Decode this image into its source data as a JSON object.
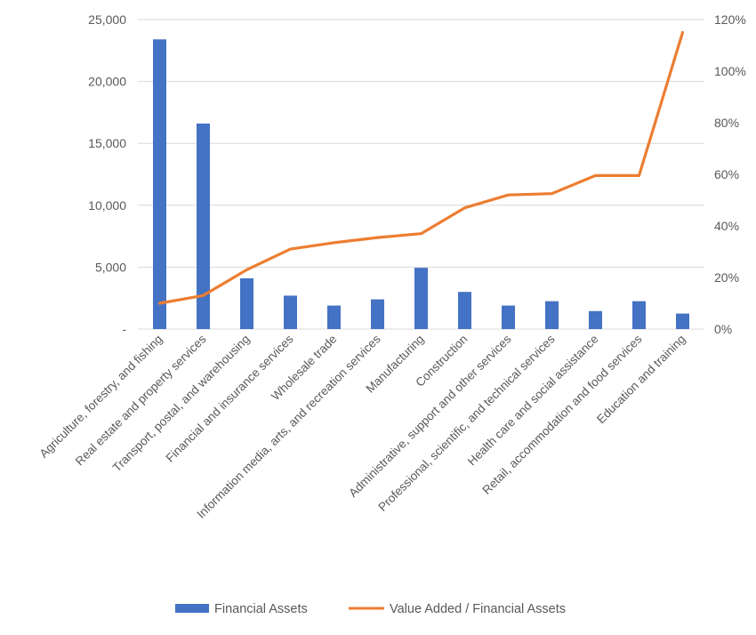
{
  "chart_data": {
    "type": "bar",
    "categories": [
      "Agriculture, forestry, and fishing",
      "Real estate and property services",
      "Transport, postal, and warehousing",
      "Financial and insurance services",
      "Wholesale trade",
      "Information media, arts, and recreation services",
      "Manufacturing",
      "Construction",
      "Administrative, support and other services",
      "Professional, scientific, and technical services",
      "Health care and social assistance",
      "Retail, accommodation and food services",
      "Education and training"
    ],
    "series": [
      {
        "name": "Financial Assets",
        "type": "bar",
        "axis": "left",
        "values": [
          23400,
          16600,
          4100,
          2700,
          1900,
          2400,
          4950,
          3000,
          1900,
          2250,
          1450,
          2250,
          1250
        ]
      },
      {
        "name": "Value Added / Financial Assets",
        "type": "line",
        "axis": "right",
        "values": [
          0.1,
          0.13,
          0.23,
          0.31,
          0.335,
          0.355,
          0.37,
          0.47,
          0.52,
          0.525,
          0.595,
          0.595,
          1.15
        ]
      }
    ],
    "left_axis": {
      "ylim": [
        0,
        25000
      ],
      "ticks": [
        0,
        5000,
        10000,
        15000,
        20000,
        25000
      ],
      "tick_labels": [
        "-",
        "5,000",
        "10,000",
        "15,000",
        "20,000",
        "25,000"
      ]
    },
    "right_axis": {
      "ylim": [
        0,
        1.2
      ],
      "ticks": [
        0,
        0.2,
        0.4,
        0.6,
        0.8,
        1.0,
        1.2
      ],
      "tick_labels": [
        "0%",
        "20%",
        "40%",
        "60%",
        "80%",
        "100%",
        "120%"
      ]
    },
    "grid": true,
    "legend_position": "bottom",
    "colors": {
      "bar": "#4472C4",
      "line": "#ED7D31",
      "grid": "#D9D9D9",
      "text": "#595959"
    }
  }
}
